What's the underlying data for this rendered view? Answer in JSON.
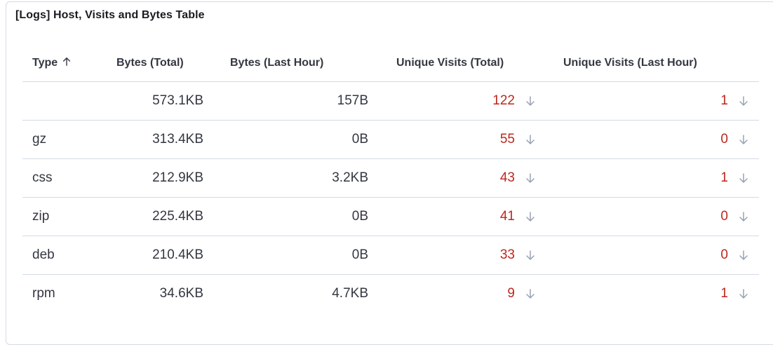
{
  "panel": {
    "title": "[Logs] Host, Visits and Bytes Table"
  },
  "table": {
    "columns": [
      {
        "label": "Type",
        "sorted": "ascending",
        "sort_icon": "arrow-up-icon"
      },
      {
        "label": "Bytes (Total)"
      },
      {
        "label": "Bytes (Last Hour)"
      },
      {
        "label": "Unique Visits (Total)"
      },
      {
        "label": "Unique Visits (Last Hour)"
      }
    ],
    "rows": [
      {
        "type": "",
        "bytes_total": "573.1KB",
        "bytes_last_hour": "157B",
        "visits_total": "122",
        "visits_last_hour": "1"
      },
      {
        "type": "gz",
        "bytes_total": "313.4KB",
        "bytes_last_hour": "0B",
        "visits_total": "55",
        "visits_last_hour": "0"
      },
      {
        "type": "css",
        "bytes_total": "212.9KB",
        "bytes_last_hour": "3.2KB",
        "visits_total": "43",
        "visits_last_hour": "1"
      },
      {
        "type": "zip",
        "bytes_total": "225.4KB",
        "bytes_last_hour": "0B",
        "visits_total": "41",
        "visits_last_hour": "0"
      },
      {
        "type": "deb",
        "bytes_total": "210.4KB",
        "bytes_last_hour": "0B",
        "visits_total": "33",
        "visits_last_hour": "0"
      },
      {
        "type": "rpm",
        "bytes_total": "34.6KB",
        "bytes_last_hour": "4.7KB",
        "visits_total": "9",
        "visits_last_hour": "1"
      }
    ],
    "trend_icon": "arrow-down-icon"
  },
  "colors": {
    "visit_value": "#bd271e",
    "trend_icon": "#98a2b3",
    "border": "#d3dae6",
    "text": "#343741"
  }
}
